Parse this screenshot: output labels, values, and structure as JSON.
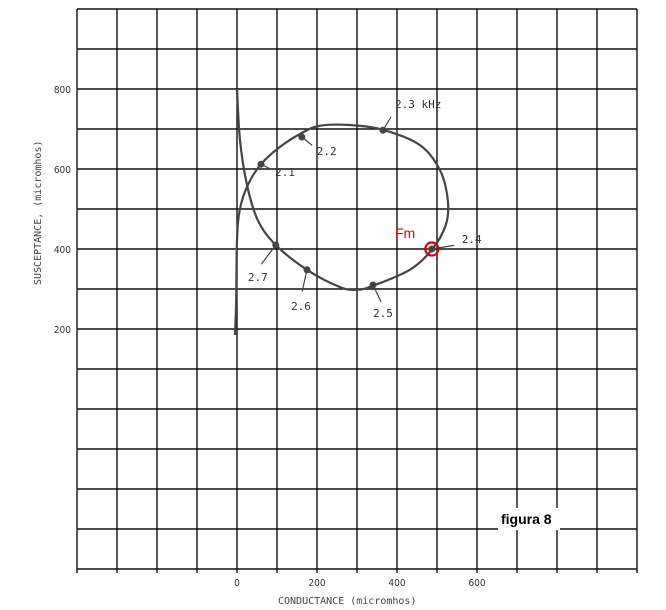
{
  "chart_data": {
    "type": "line",
    "title": "",
    "xlabel": "CONDUCTANCE (micromhos)",
    "ylabel": "SUSCEPTANCE, (micromhos)",
    "xlim": [
      -400,
      1000
    ],
    "ylim": [
      -400,
      1000
    ],
    "grid": true,
    "grid_step": 100,
    "x_ticks": [
      0,
      200,
      400,
      600
    ],
    "x_tick_labels": [
      "0",
      "200",
      "400",
      "600"
    ],
    "y_ticks": [
      800,
      600,
      400,
      200
    ],
    "y_tick_labels": [
      "800",
      "600",
      "400",
      "200"
    ],
    "curve": [
      [
        0,
        800
      ],
      [
        7.5,
        672
      ],
      [
        25,
        560
      ],
      [
        52,
        472
      ],
      [
        97,
        410
      ],
      [
        175,
        348
      ],
      [
        257,
        305
      ],
      [
        300,
        298
      ],
      [
        340,
        308
      ],
      [
        432,
        348
      ],
      [
        487,
        398
      ],
      [
        522,
        460
      ],
      [
        527,
        522
      ],
      [
        507,
        598
      ],
      [
        457,
        660
      ],
      [
        365,
        698
      ],
      [
        282,
        710
      ],
      [
        207,
        708
      ],
      [
        162,
        690
      ],
      [
        107,
        655
      ],
      [
        60,
        612
      ],
      [
        27,
        560
      ],
      [
        7,
        498
      ],
      [
        0,
        422
      ],
      [
        -2,
        272
      ],
      [
        -5,
        185
      ]
    ],
    "points": [
      {
        "label": "2.1",
        "x": 60,
        "y": 612
      },
      {
        "label": "2.2",
        "x": 162,
        "y": 680
      },
      {
        "label": "2.3 kHz",
        "x": 365,
        "y": 697
      },
      {
        "label": "2.4",
        "x": 487,
        "y": 400
      },
      {
        "label": "2.5",
        "x": 340,
        "y": 310
      },
      {
        "label": "2.6",
        "x": 175,
        "y": 348
      },
      {
        "label": "2.7",
        "x": 97,
        "y": 410
      }
    ],
    "highlight": {
      "label": "Fm",
      "point_label": "2.4",
      "color": "#e00000"
    },
    "annotation": "figura 8",
    "line_color": "#444444",
    "grid_color": "#111111"
  }
}
